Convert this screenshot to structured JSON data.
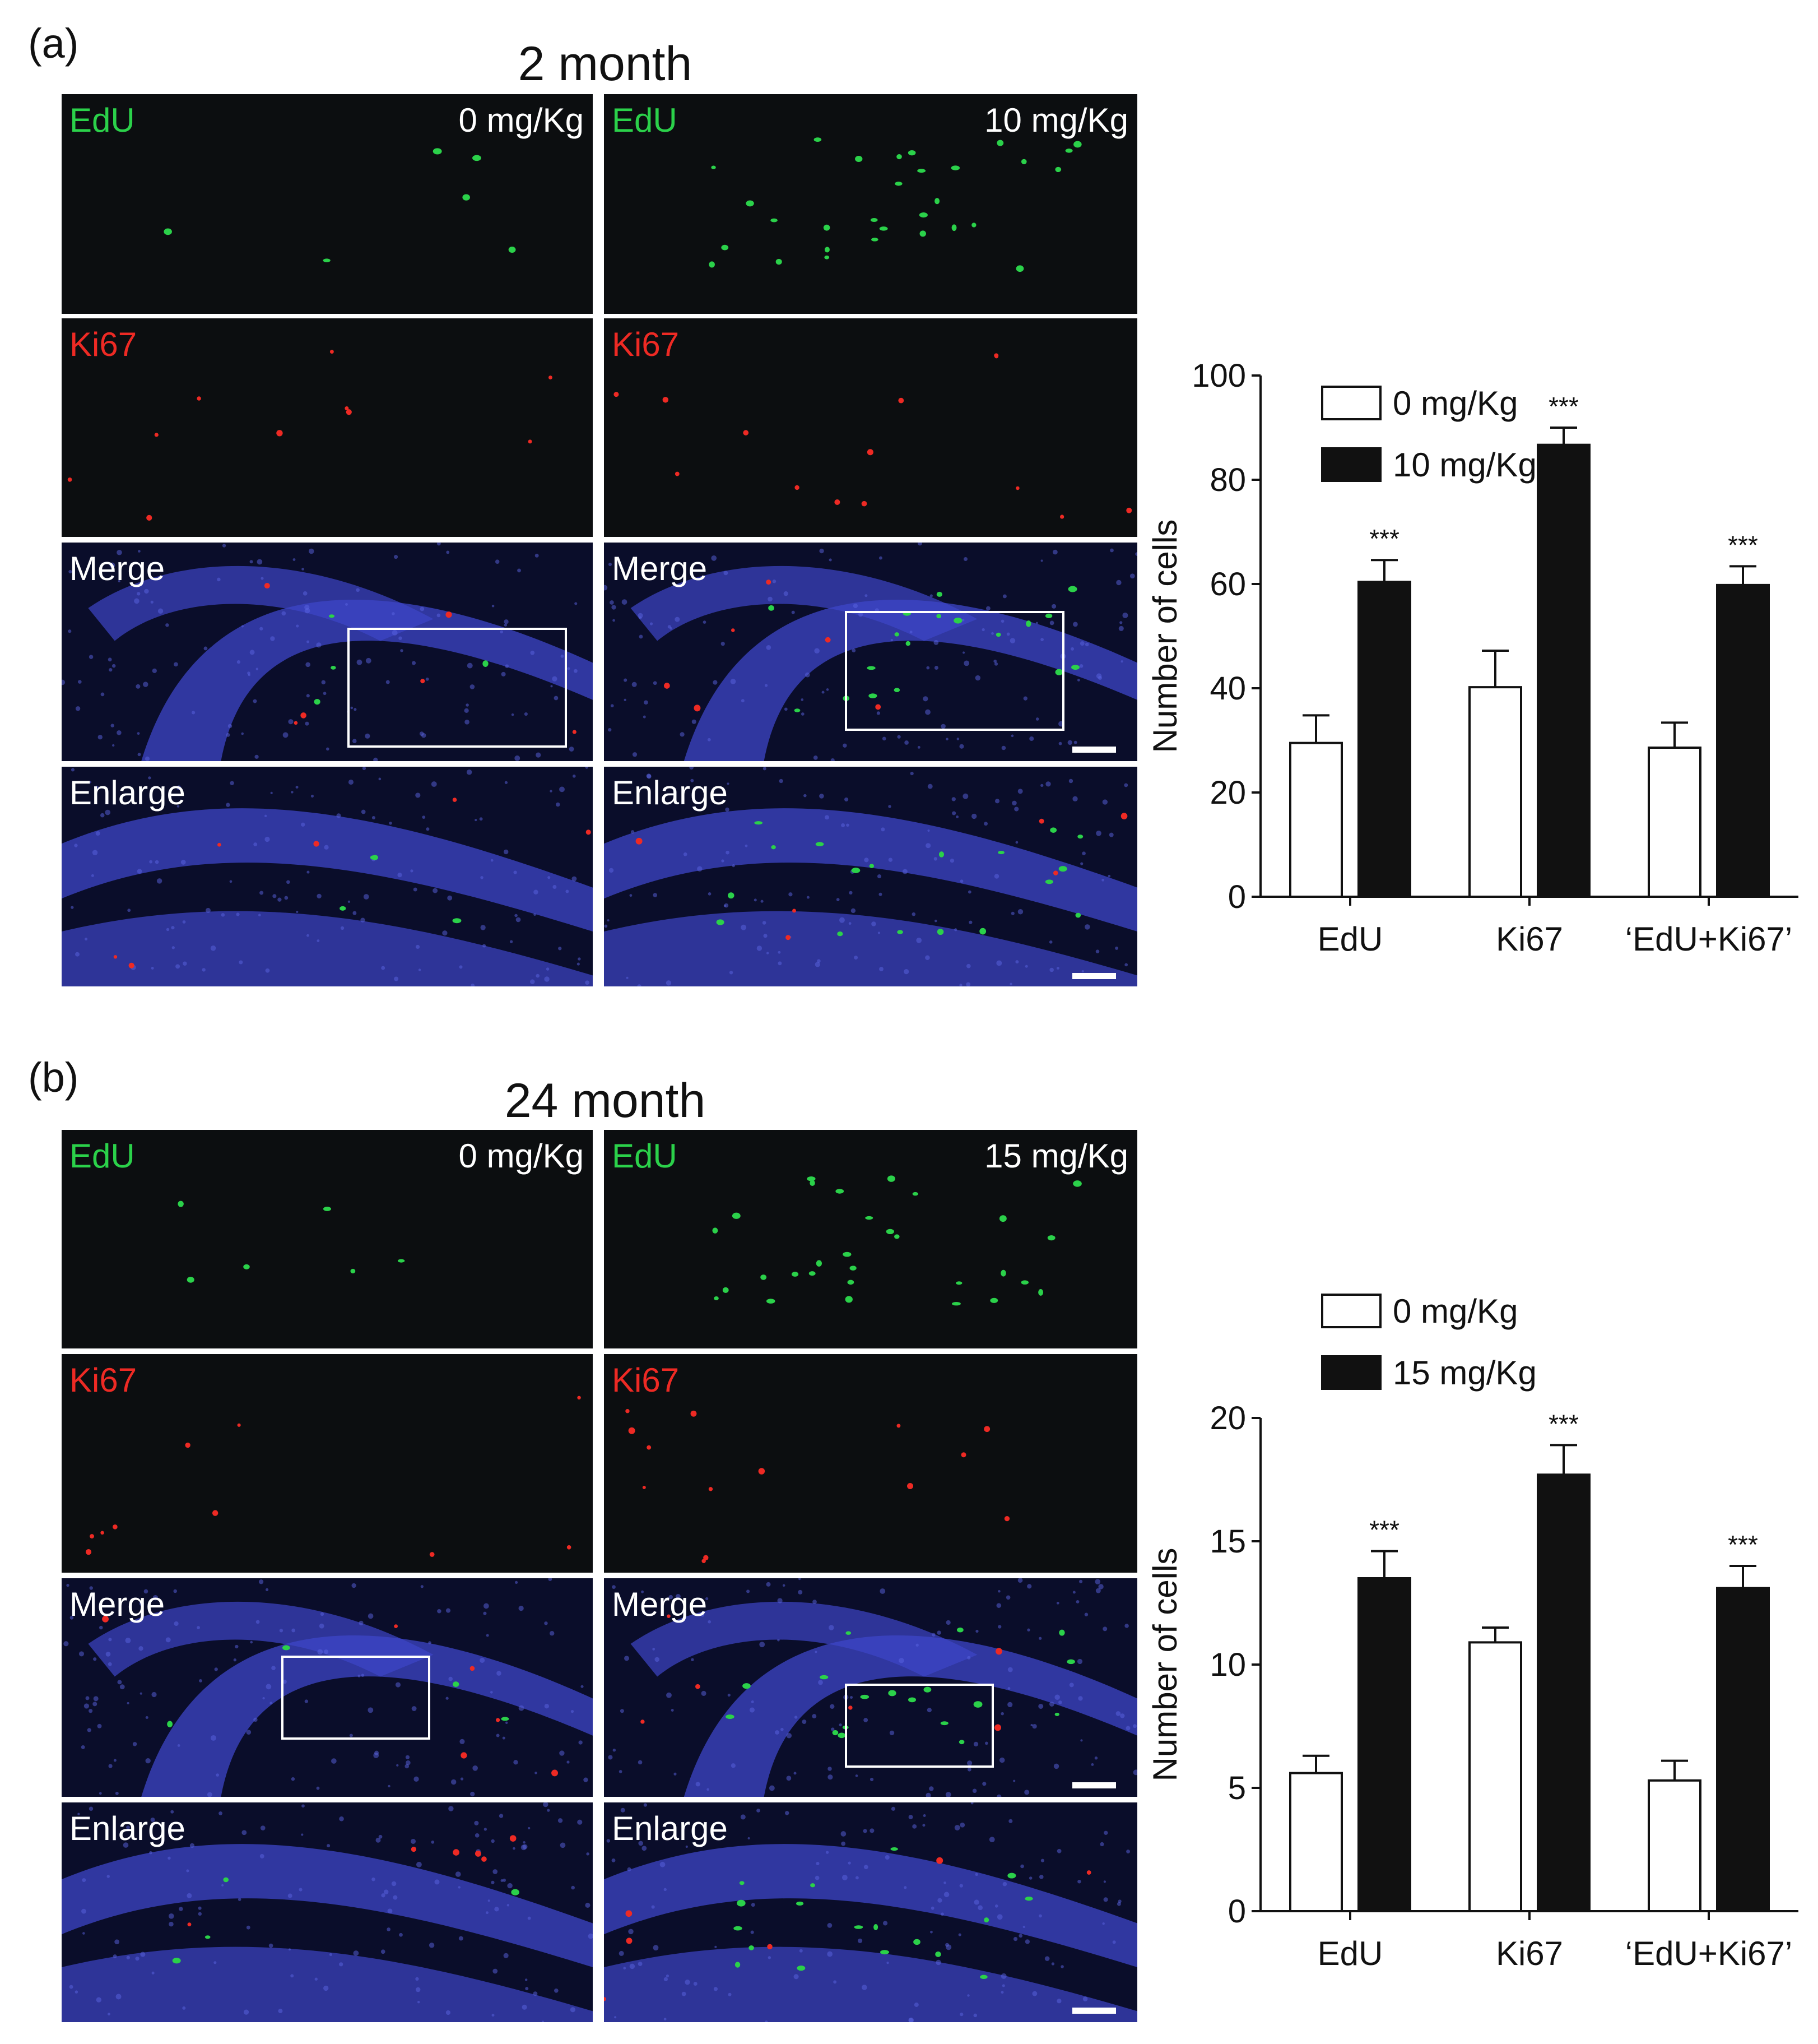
{
  "panels": [
    {
      "label": "(a)",
      "title": "2 month",
      "columns": [
        {
          "dose": "0 mg/Kg"
        },
        {
          "dose": "10 mg/Kg"
        }
      ],
      "row_labels": [
        "EdU",
        "Ki67",
        "Merge",
        "Enlarge"
      ]
    },
    {
      "label": "(b)",
      "title": "24 month",
      "columns": [
        {
          "dose": "0 mg/Kg"
        },
        {
          "dose": "15 mg/Kg"
        }
      ],
      "row_labels": [
        "EdU",
        "Ki67",
        "Merge",
        "Enlarge"
      ]
    }
  ],
  "colors": {
    "edu": "#2bd14a",
    "ki67": "#ee2a24",
    "dapi": "#3d46c8"
  },
  "chart_data": [
    {
      "type": "bar",
      "categories": [
        "EdU",
        "Ki67",
        "‘EdU+Ki67’"
      ],
      "series": [
        {
          "name": "0 mg/Kg",
          "values": [
            29.5,
            40.2,
            28.6
          ],
          "errors": [
            5.3,
            7.0,
            4.8
          ],
          "fill": "#ffffff"
        },
        {
          "name": "10 mg/Kg",
          "values": [
            60.4,
            86.7,
            59.8
          ],
          "errors": [
            4.2,
            3.3,
            3.6
          ],
          "fill": "#111111"
        }
      ],
      "significance": [
        "***",
        "***",
        "***"
      ],
      "ylabel": "Number of cells",
      "ylim": [
        0,
        100
      ],
      "yticks": [
        0,
        20,
        40,
        60,
        80,
        100
      ]
    },
    {
      "type": "bar",
      "categories": [
        "EdU",
        "Ki67",
        "‘EdU+Ki67’"
      ],
      "series": [
        {
          "name": "0 mg/Kg",
          "values": [
            5.6,
            10.9,
            5.3
          ],
          "errors": [
            0.7,
            0.6,
            0.8
          ],
          "fill": "#ffffff"
        },
        {
          "name": "15 mg/Kg",
          "values": [
            13.5,
            17.7,
            13.1
          ],
          "errors": [
            1.1,
            1.2,
            0.9
          ],
          "fill": "#111111"
        }
      ],
      "significance": [
        "***",
        "***",
        "***"
      ],
      "ylabel": "Number of cells",
      "ylim": [
        0,
        20
      ],
      "yticks": [
        0,
        5,
        10,
        15,
        20
      ]
    }
  ]
}
